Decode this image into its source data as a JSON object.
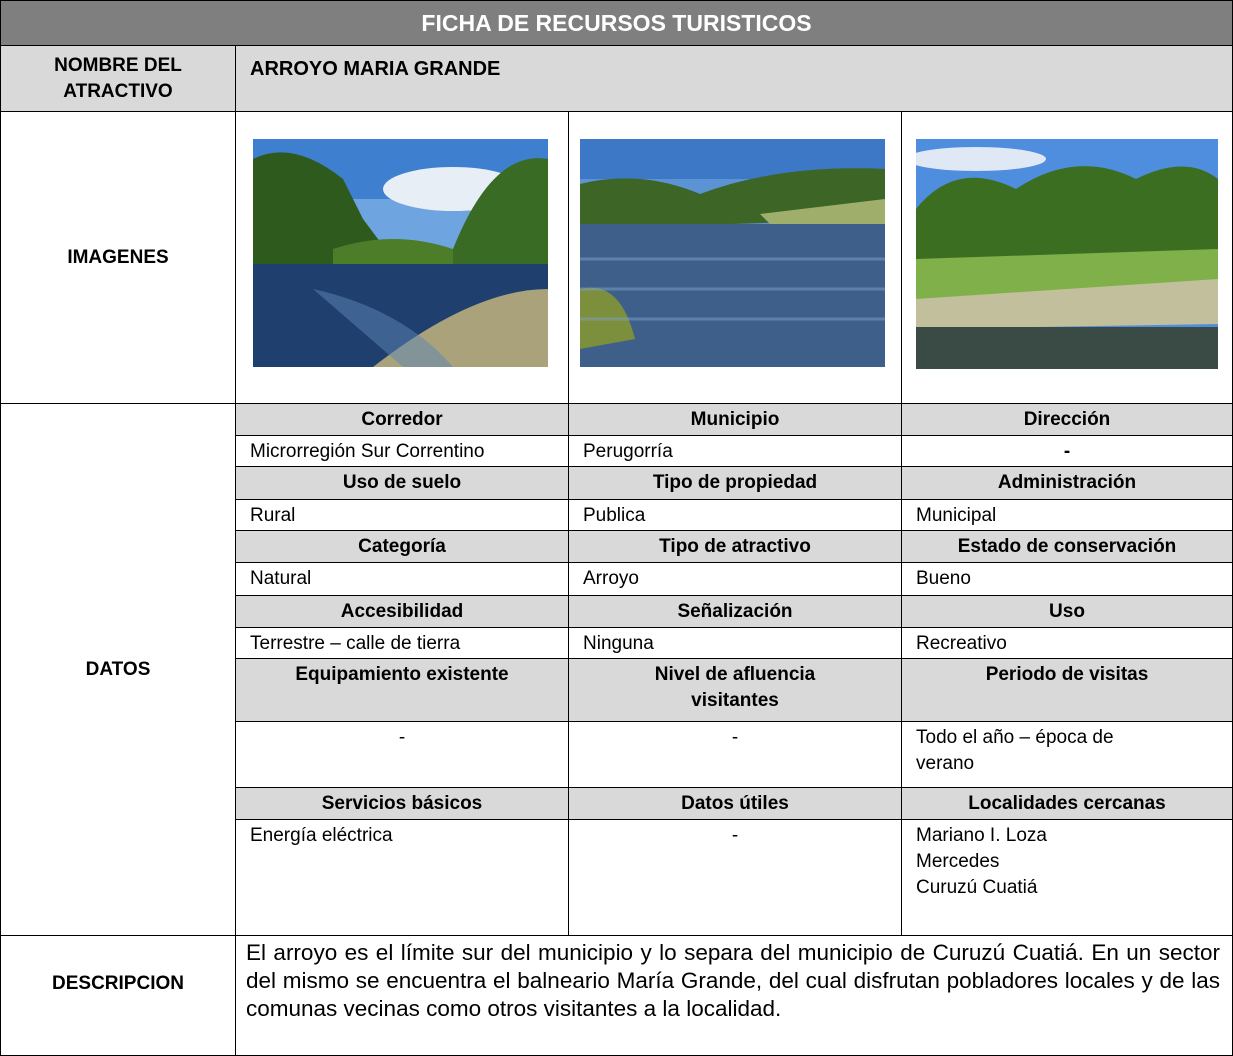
{
  "title": "FICHA DE RECURSOS TURISTICOS",
  "name": {
    "label": "NOMBRE DEL ATRACTIVO",
    "value": "ARROYO MARIA GRANDE"
  },
  "images": {
    "label": "IMAGENES"
  },
  "data": {
    "label": "DATOS",
    "rows": [
      {
        "headers": [
          "Corredor",
          "Municipio",
          "Dirección"
        ],
        "values": [
          "Microrregión Sur Correntino",
          "Perugorría",
          "-"
        ]
      },
      {
        "headers": [
          "Uso de suelo",
          "Tipo de propiedad",
          "Administración"
        ],
        "values": [
          "Rural",
          "Publica",
          "Municipal"
        ]
      },
      {
        "headers": [
          "Categoría",
          "Tipo de atractivo",
          "Estado de conservación"
        ],
        "values": [
          "Natural",
          "Arroyo",
          "Bueno"
        ]
      },
      {
        "headers": [
          "Accesibilidad",
          "Señalización",
          "Uso"
        ],
        "values": [
          "Terrestre – calle de tierra",
          "Ninguna",
          "Recreativo"
        ]
      },
      {
        "headers": [
          "Equipamiento existente",
          "Nivel de afluencia visitantes",
          "Periodo de visitas"
        ],
        "values": [
          "-",
          "-",
          "Todo el año – época de verano"
        ]
      },
      {
        "headers": [
          "Servicios básicos",
          "Datos útiles",
          "Localidades cercanas"
        ],
        "values": [
          "Energía eléctrica",
          "-",
          "Mariano I. Loza\nMercedes\nCuruzú Cuatiá"
        ]
      }
    ]
  },
  "description": {
    "label": "DESCRIPCION",
    "text": "El arroyo es el límite sur del municipio y lo separa del municipio de Curuzú Cuatiá. En un sector del mismo se encuentra el balneario María Grande, del cual disfrutan pobladores locales y de las comunas vecinas como otros visitantes a la localidad."
  }
}
